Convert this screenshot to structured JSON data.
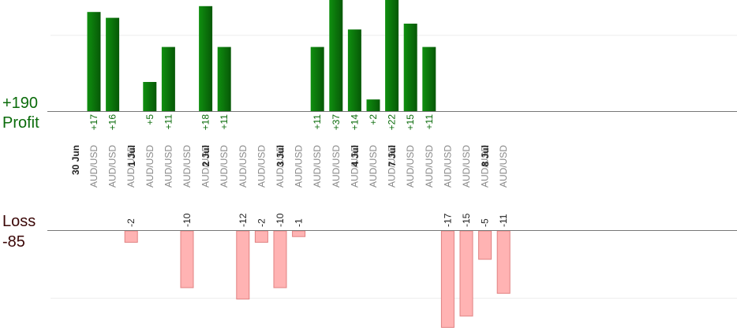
{
  "summary": {
    "profit_total": "+190",
    "profit_label": "Profit",
    "loss_label": "Loss",
    "loss_total": "-85"
  },
  "colors": {
    "profit_bar": "#0b7a0b",
    "profit_text": "#0a6b0a",
    "loss_bar": "#ffb3b3",
    "loss_edge": "#e08080",
    "axis": "#777777",
    "grid": "#eeeeee",
    "pair_text": "#888888",
    "date_text": "#222222"
  },
  "chart_data": {
    "type": "bar",
    "columns": [
      {
        "date": "30 Jun",
        "pair": "AUD/USD",
        "value": 17
      },
      {
        "date": "",
        "pair": "AUD/USD",
        "value": 16
      },
      {
        "date": "",
        "pair": "AUD/USD",
        "value": -2
      },
      {
        "date": "1 Jul",
        "pair": "AUD/USD",
        "value": 5
      },
      {
        "date": "",
        "pair": "AUD/USD",
        "value": 11
      },
      {
        "date": "",
        "pair": "AUD/USD",
        "value": -10
      },
      {
        "date": "",
        "pair": "AUD/USD",
        "value": 18
      },
      {
        "date": "2 Jul",
        "pair": "AUD/USD",
        "value": 11
      },
      {
        "date": "",
        "pair": "AUD/USD",
        "value": -12
      },
      {
        "date": "",
        "pair": "AUD/USD",
        "value": -2
      },
      {
        "date": "",
        "pair": "AUD/USD",
        "value": -10
      },
      {
        "date": "3 Jul",
        "pair": "AUD/USD",
        "value": -1
      },
      {
        "date": "",
        "pair": "AUD/USD",
        "value": 11
      },
      {
        "date": "",
        "pair": "AUD/USD",
        "value": 37
      },
      {
        "date": "",
        "pair": "AUD/USD",
        "value": 14
      },
      {
        "date": "4 Jul",
        "pair": "AUD/USD",
        "value": 2
      },
      {
        "date": "",
        "pair": "AUD/USD",
        "value": 22
      },
      {
        "date": "7 Jul",
        "pair": "AUD/USD",
        "value": 15
      },
      {
        "date": "",
        "pair": "AUD/USD",
        "value": 11
      },
      {
        "date": "",
        "pair": "AUD/USD",
        "value": -17
      },
      {
        "date": "",
        "pair": "AUD/USD",
        "value": -15
      },
      {
        "date": "",
        "pair": "AUD/USD",
        "value": -5
      },
      {
        "date": "8 Jul",
        "pair": "AUD/USD",
        "value": -11
      }
    ],
    "profit_range": [
      0,
      13
    ],
    "loss_range": [
      -16,
      0
    ],
    "grid": true
  }
}
